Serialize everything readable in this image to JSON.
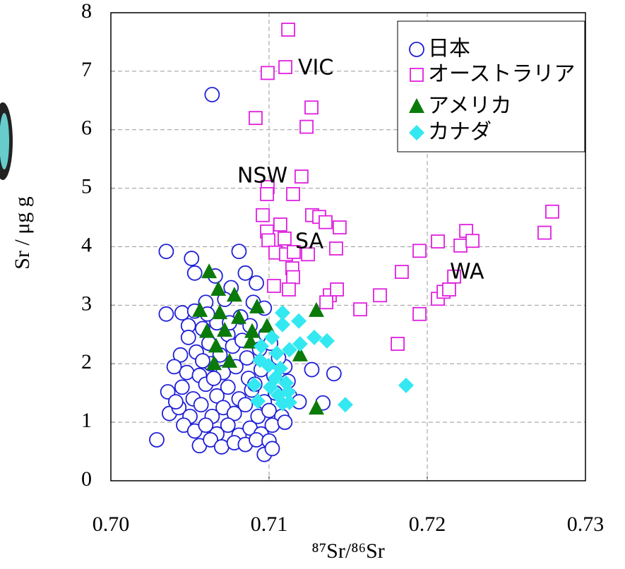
{
  "chart_data": {
    "type": "scatter",
    "x_label": "⁸⁷Sr/⁸⁶Sr",
    "y_label": "Sr / μg g",
    "annotations": [
      "VIC",
      "NSW",
      "SA",
      "WA"
    ],
    "xlim": [
      0.7,
      0.73
    ],
    "xticks": [
      {
        "value": 0.7,
        "label": "0.70"
      },
      0.71,
      0.72,
      0.73
    ],
    "ylim": [
      0,
      8
    ],
    "yticks": [
      0,
      1,
      2,
      3,
      4,
      5,
      6,
      7,
      8
    ],
    "grid": true,
    "legend": "upper right",
    "series": [
      {
        "name": "日本",
        "color": "#1f1fd6",
        "marker": "circle",
        "x": [
          0.7064,
          0.7035,
          0.7051,
          0.7081,
          0.7029,
          0.7097,
          0.7141,
          0.7127,
          0.7134,
          0.7053,
          0.7085,
          0.7092,
          0.7066,
          0.7076,
          0.706,
          0.7072,
          0.709,
          0.7097,
          0.7035,
          0.7045,
          0.7053,
          0.7067,
          0.7082,
          0.7049,
          0.7058,
          0.7074,
          0.7088,
          0.7098,
          0.7044,
          0.7054,
          0.7062,
          0.7069,
          0.7077,
          0.7086,
          0.7094,
          0.7101,
          0.704,
          0.7048,
          0.7056,
          0.7063,
          0.7071,
          0.7079,
          0.7087,
          0.7095,
          0.7103,
          0.711,
          0.7036,
          0.7045,
          0.7052,
          0.706,
          0.7067,
          0.7074,
          0.7081,
          0.7089,
          0.7097,
          0.7104,
          0.7113,
          0.7119,
          0.7037,
          0.7043,
          0.705,
          0.7057,
          0.7064,
          0.7071,
          0.7078,
          0.7085,
          0.7093,
          0.71,
          0.7108,
          0.7046,
          0.7053,
          0.706,
          0.7067,
          0.7074,
          0.7081,
          0.7088,
          0.7095,
          0.7102,
          0.711,
          0.7056,
          0.7063,
          0.707,
          0.7078,
          0.7085,
          0.7092,
          0.71,
          0.7049,
          0.7061,
          0.7083,
          0.7091,
          0.7065,
          0.7041,
          0.7058,
          0.7075,
          0.7102,
          0.7112,
          0.7106
        ],
        "y": [
          6.6,
          3.92,
          3.8,
          3.92,
          0.7,
          0.45,
          1.83,
          1.9,
          1.33,
          3.55,
          3.55,
          3.38,
          3.5,
          3.3,
          3.05,
          3.1,
          3.05,
          2.95,
          2.85,
          2.87,
          2.9,
          2.7,
          2.8,
          2.65,
          2.6,
          2.5,
          2.65,
          2.5,
          2.15,
          2.2,
          2.35,
          2.15,
          2.3,
          2.1,
          2.25,
          2.35,
          1.95,
          1.85,
          1.8,
          2.0,
          1.85,
          1.95,
          1.75,
          1.9,
          1.8,
          1.95,
          1.52,
          1.6,
          1.4,
          1.65,
          1.45,
          1.6,
          1.4,
          1.55,
          1.35,
          1.5,
          1.45,
          1.35,
          1.15,
          1.25,
          1.1,
          1.3,
          1.1,
          1.25,
          1.15,
          1.3,
          1.1,
          1.2,
          1.1,
          0.95,
          0.85,
          0.95,
          0.8,
          0.95,
          0.78,
          0.9,
          0.8,
          0.95,
          1.0,
          0.6,
          0.7,
          0.58,
          0.65,
          0.62,
          0.7,
          0.68,
          2.45,
          2.85,
          2.4,
          1.65,
          1.75,
          1.35,
          2.05,
          2.7,
          0.55,
          1.7,
          2.1
        ]
      },
      {
        "name": "オーストラリア",
        "color": "#e020e0",
        "marker": "square",
        "x": [
          0.71121,
          0.70991,
          0.71103,
          0.71268,
          0.71237,
          0.70915,
          0.71205,
          0.70991,
          0.70987,
          0.71152,
          0.7096,
          0.71071,
          0.70987,
          0.70996,
          0.71098,
          0.71272,
          0.71317,
          0.71446,
          0.71357,
          0.71424,
          0.7104,
          0.71107,
          0.71156,
          0.71246,
          0.71147,
          0.71152,
          0.71031,
          0.71125,
          0.71384,
          0.71362,
          0.71429,
          0.71576,
          0.71701,
          0.71813,
          0.71839,
          0.71951,
          0.71951,
          0.72067,
          0.72067,
          0.72103,
          0.72138,
          0.7217,
          0.7221,
          0.72246,
          0.72286,
          0.72741,
          0.7279
        ],
        "y": [
          7.71,
          6.97,
          7.07,
          6.38,
          6.05,
          6.2,
          5.2,
          5.02,
          4.9,
          4.9,
          4.54,
          4.38,
          4.26,
          4.11,
          4.14,
          4.54,
          4.51,
          4.33,
          4.42,
          3.97,
          3.9,
          3.87,
          3.91,
          3.87,
          3.63,
          3.48,
          3.33,
          3.27,
          3.17,
          3.05,
          3.27,
          2.93,
          3.17,
          2.34,
          3.57,
          2.85,
          3.93,
          4.09,
          3.11,
          3.23,
          3.27,
          3.49,
          4.02,
          4.27,
          4.1,
          4.24,
          4.6
        ]
      },
      {
        "name": "アメリカ",
        "color": "#0a7a0a",
        "marker": "triangle",
        "x": [
          0.70621,
          0.70679,
          0.70563,
          0.70688,
          0.70781,
          0.70808,
          0.70924,
          0.70607,
          0.70719,
          0.70665,
          0.70893,
          0.70987,
          0.7075,
          0.70884,
          0.71299,
          0.71299,
          0.71196,
          0.70652
        ],
        "y": [
          3.57,
          3.27,
          2.91,
          2.87,
          3.17,
          2.79,
          2.97,
          2.55,
          2.57,
          2.3,
          2.55,
          2.64,
          2.04,
          2.37,
          2.91,
          1.24,
          2.15,
          2.0
        ]
      },
      {
        "name": "カナダ",
        "color": "#33e8f0",
        "marker": "diamond",
        "x": [
          0.71085,
          0.71188,
          0.71085,
          0.71286,
          0.71366,
          0.71196,
          0.70951,
          0.71018,
          0.71049,
          0.71129,
          0.70942,
          0.71071,
          0.7104,
          0.71107,
          0.70906,
          0.71009,
          0.71121,
          0.71058,
          0.70929,
          0.71085,
          0.71129,
          0.71482,
          0.71866,
          0.70996
        ],
        "y": [
          2.87,
          2.73,
          2.67,
          2.45,
          2.39,
          2.34,
          2.3,
          2.45,
          2.18,
          2.24,
          2.06,
          1.92,
          1.76,
          1.67,
          1.64,
          1.6,
          1.52,
          1.46,
          1.36,
          1.32,
          1.34,
          1.3,
          1.63,
          1.97
        ]
      }
    ]
  }
}
